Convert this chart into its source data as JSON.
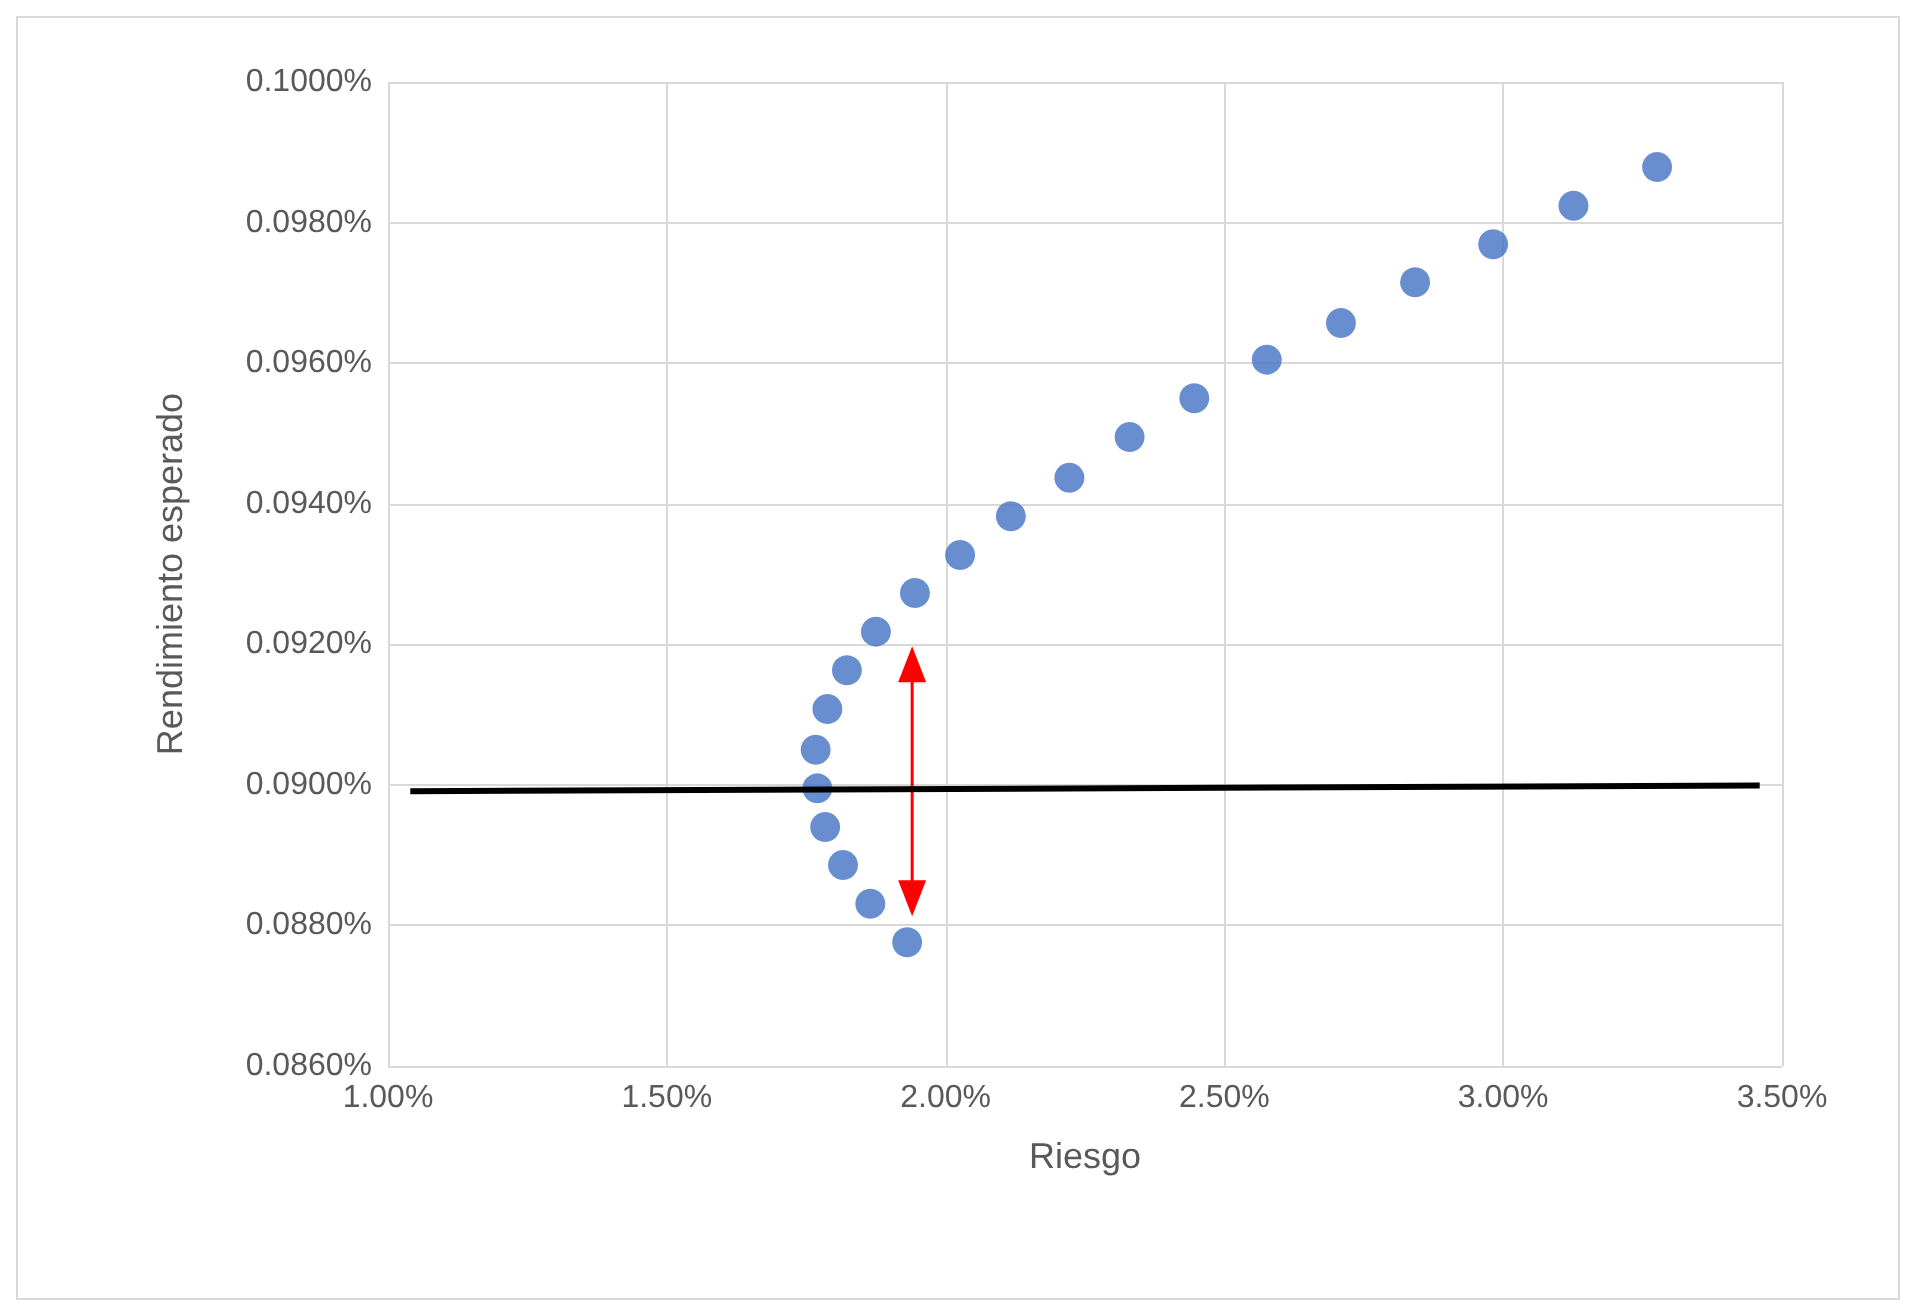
{
  "chart_data": {
    "type": "scatter",
    "xlabel": "Riesgo",
    "ylabel": "Rendimiento esperado",
    "xlim": [
      1,
      3.5
    ],
    "ylim": [
      0.086,
      0.1
    ],
    "xticks": [
      {
        "value": 1,
        "label": "1.00%"
      },
      {
        "value": 1.5,
        "label": "1.50%"
      },
      {
        "value": 2,
        "label": "2.00%"
      },
      {
        "value": 2.5,
        "label": "2.50%"
      },
      {
        "value": 3,
        "label": "3.00%"
      },
      {
        "value": 3.5,
        "label": "3.50%"
      }
    ],
    "yticks": [
      {
        "value": 0.086,
        "label": "0.0860%"
      },
      {
        "value": 0.088,
        "label": "0.0880%"
      },
      {
        "value": 0.09,
        "label": "0.0900%"
      },
      {
        "value": 0.092,
        "label": "0.0920%"
      },
      {
        "value": 0.094,
        "label": "0.0940%"
      },
      {
        "value": 0.096,
        "label": "0.0960%"
      },
      {
        "value": 0.098,
        "label": "0.0980%"
      },
      {
        "value": 0.1,
        "label": "0.1000%"
      }
    ],
    "grid": true,
    "marker": "circle",
    "series": [
      {
        "color": "#4472c4",
        "x": [
          1.931,
          1.865,
          1.816,
          1.784,
          1.77,
          1.767,
          1.788,
          1.823,
          1.875,
          1.945,
          2.026,
          2.117,
          2.222,
          2.33,
          2.446,
          2.576,
          2.709,
          2.842,
          2.982,
          3.126,
          3.276
        ],
        "values": [
          0.08776,
          0.08831,
          0.08886,
          0.0894,
          0.08995,
          0.0905,
          0.09108,
          0.09163,
          0.09218,
          0.09273,
          0.09327,
          0.09382,
          0.09437,
          0.09495,
          0.0955,
          0.09605,
          0.09657,
          0.09715,
          0.09769,
          0.09824,
          0.09879
        ]
      },
      {
        "type": "line",
        "color": "#000000",
        "marker": "none",
        "x": [
          1.04,
          3.46
        ],
        "values": [
          0.08991,
          0.08999
        ]
      }
    ]
  }
}
